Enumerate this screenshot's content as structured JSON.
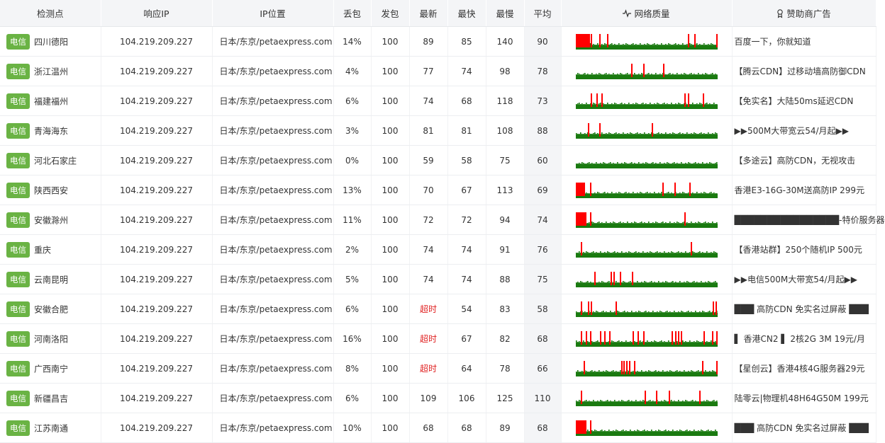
{
  "headers": {
    "point": "检测点",
    "ip": "响应IP",
    "location": "IP位置",
    "loss": "丢包",
    "sent": "发包",
    "latest": "最新",
    "fastest": "最快",
    "slowest": "最慢",
    "avg": "平均",
    "quality": "网络质量",
    "ads": "赞助商广告",
    "quality_icon": "pulse-icon",
    "ads_icon": "award-icon"
  },
  "colors": {
    "isp_badge": "#6ab344",
    "bar_ok": "#1a7a10",
    "bar_loss": "#ff0000",
    "timeout_text": "#e02020"
  },
  "rows": [
    {
      "isp": "电信",
      "city": "四川德阳",
      "ip": "104.219.209.227",
      "location": "日本/东京/petaexpress.com",
      "loss": "14%",
      "sent": "100",
      "latest": "89",
      "fastest": "85",
      "slowest": "140",
      "avg": "90",
      "ad": "百度一下，你就知道",
      "quality": {
        "block": 0.1,
        "spikes": [
          0.08,
          0.105,
          0.165,
          0.22,
          0.79,
          0.835,
          0.99
        ]
      }
    },
    {
      "isp": "电信",
      "city": "浙江温州",
      "ip": "104.219.209.227",
      "location": "日本/东京/petaexpress.com",
      "loss": "4%",
      "sent": "100",
      "latest": "77",
      "fastest": "74",
      "slowest": "98",
      "avg": "78",
      "ad": "【腾云CDN】过移动墙高防御CDN",
      "quality": {
        "block": 0,
        "spikes": [
          0.39,
          0.475,
          0.615
        ]
      }
    },
    {
      "isp": "电信",
      "city": "福建福州",
      "ip": "104.219.209.227",
      "location": "日本/东京/petaexpress.com",
      "loss": "6%",
      "sent": "100",
      "latest": "74",
      "fastest": "68",
      "slowest": "118",
      "avg": "73",
      "ad": "【免实名】大陆50ms延迟CDN",
      "quality": {
        "block": 0,
        "spikes": [
          0.105,
          0.145,
          0.18,
          0.765,
          0.79,
          0.895
        ]
      }
    },
    {
      "isp": "电信",
      "city": "青海海东",
      "ip": "104.219.209.227",
      "location": "日本/东京/petaexpress.com",
      "loss": "3%",
      "sent": "100",
      "latest": "81",
      "fastest": "81",
      "slowest": "108",
      "avg": "88",
      "ad": "▶▶500M大带宽云54/月起▶▶",
      "quality": {
        "block": 0,
        "spikes": [
          0.085,
          0.165,
          0.535
        ]
      }
    },
    {
      "isp": "电信",
      "city": "河北石家庄",
      "ip": "104.219.209.227",
      "location": "日本/东京/petaexpress.com",
      "loss": "0%",
      "sent": "100",
      "latest": "59",
      "fastest": "58",
      "slowest": "75",
      "avg": "60",
      "ad": "【多途云】高防CDN，无视攻击",
      "quality": {
        "block": 0,
        "spikes": []
      }
    },
    {
      "isp": "电信",
      "city": "陕西西安",
      "ip": "104.219.209.227",
      "location": "日本/东京/petaexpress.com",
      "loss": "13%",
      "sent": "100",
      "latest": "70",
      "fastest": "67",
      "slowest": "113",
      "avg": "69",
      "ad": "香港E3-16G-30M送高防IP 299元",
      "quality": {
        "block": 0.065,
        "spikes": [
          0.1,
          0.61,
          0.695,
          0.8
        ]
      }
    },
    {
      "isp": "电信",
      "city": "安徽滁州",
      "ip": "104.219.209.227",
      "location": "日本/东京/petaexpress.com",
      "loss": "11%",
      "sent": "100",
      "latest": "72",
      "fastest": "72",
      "slowest": "94",
      "avg": "74",
      "ad": "████████████████-特价服务器",
      "quality": {
        "block": 0.075,
        "spikes": [
          0.1,
          0.765
        ]
      }
    },
    {
      "isp": "电信",
      "city": "重庆",
      "ip": "104.219.209.227",
      "location": "日本/东京/petaexpress.com",
      "loss": "2%",
      "sent": "100",
      "latest": "74",
      "fastest": "74",
      "slowest": "91",
      "avg": "76",
      "ad": "【香港站群】250个随机IP 500元",
      "quality": {
        "block": 0,
        "spikes": [
          0.035,
          0.81
        ]
      }
    },
    {
      "isp": "电信",
      "city": "云南昆明",
      "ip": "104.219.209.227",
      "location": "日本/东京/petaexpress.com",
      "loss": "5%",
      "sent": "100",
      "latest": "74",
      "fastest": "74",
      "slowest": "88",
      "avg": "75",
      "ad": "▶▶电信500M大带宽54/月起▶▶",
      "quality": {
        "block": 0,
        "spikes": [
          0.13,
          0.245,
          0.265,
          0.31,
          0.395
        ]
      }
    },
    {
      "isp": "电信",
      "city": "安徽合肥",
      "ip": "104.219.209.227",
      "location": "日本/东京/petaexpress.com",
      "loss": "6%",
      "sent": "100",
      "latest": "超时",
      "latest_timeout": true,
      "fastest": "54",
      "slowest": "83",
      "avg": "58",
      "ad": "███ 高防CDN 免实名过屏蔽 ███",
      "quality": {
        "block": 0,
        "spikes": [
          0.035,
          0.085,
          0.105,
          0.28,
          0.965,
          0.985
        ]
      }
    },
    {
      "isp": "电信",
      "city": "河南洛阳",
      "ip": "104.219.209.227",
      "location": "日本/东京/petaexpress.com",
      "loss": "16%",
      "sent": "100",
      "latest": "超时",
      "latest_timeout": true,
      "fastest": "67",
      "slowest": "82",
      "avg": "68",
      "ad": "▌ 香港CN2 ▌ 2核2G 3M 19元/月",
      "quality": {
        "block": 0,
        "spikes": [
          0.035,
          0.07,
          0.1,
          0.17,
          0.2,
          0.235,
          0.4,
          0.435,
          0.475,
          0.675,
          0.7,
          0.72,
          0.74,
          0.9,
          0.96,
          0.995
        ]
      }
    },
    {
      "isp": "电信",
      "city": "广西南宁",
      "ip": "104.219.209.227",
      "location": "日本/东京/petaexpress.com",
      "loss": "8%",
      "sent": "100",
      "latest": "超时",
      "latest_timeout": true,
      "fastest": "64",
      "slowest": "78",
      "avg": "66",
      "ad": "【星创云】香港4核4G服务器29元",
      "quality": {
        "block": 0,
        "spikes": [
          0.055,
          0.32,
          0.335,
          0.355,
          0.375,
          0.41,
          0.89,
          0.995
        ]
      }
    },
    {
      "isp": "电信",
      "city": "新疆昌吉",
      "ip": "104.219.209.227",
      "location": "日本/东京/petaexpress.com",
      "loss": "6%",
      "sent": "100",
      "latest": "109",
      "fastest": "106",
      "slowest": "125",
      "avg": "110",
      "ad": "陆零云|物理机48H64G50M 199元",
      "quality": {
        "block": 0,
        "spikes": [
          0.035,
          0.485,
          0.565,
          0.655,
          0.87
        ]
      }
    },
    {
      "isp": "电信",
      "city": "江苏南通",
      "ip": "104.219.209.227",
      "location": "日本/东京/petaexpress.com",
      "loss": "10%",
      "sent": "100",
      "latest": "68",
      "fastest": "68",
      "slowest": "89",
      "avg": "68",
      "ad": "███ 高防CDN 免实名过屏蔽 ███",
      "quality": {
        "block": 0.075,
        "spikes": [
          0.1
        ]
      }
    }
  ]
}
